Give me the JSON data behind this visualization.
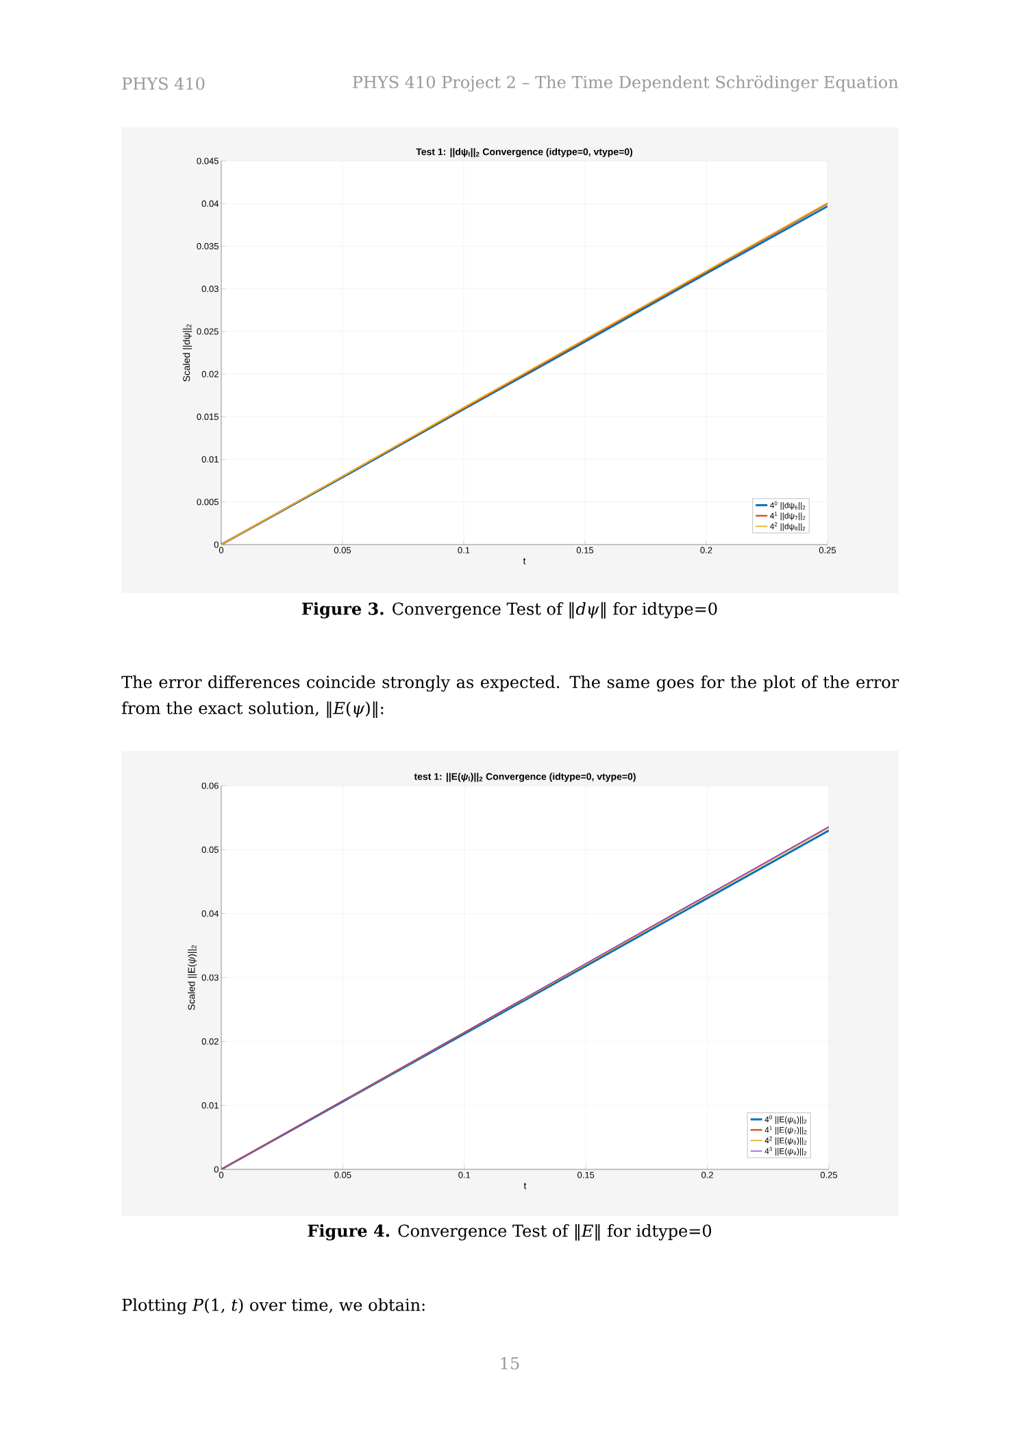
{
  "chart_data": [
    {
      "type": "line",
      "title": "Test 1: ||dψ$_{l}$||$_{2}$ Convergence (idtype=0, vtype=0)",
      "xlabel": "t",
      "ylabel": "Scaled ||dψ||$_{2}$",
      "x": [
        0,
        0.05,
        0.1,
        0.15,
        0.2,
        0.25
      ],
      "series": [
        {
          "name": "4$^{0}$ ||dψ$_{6}$||$_{2}$",
          "color": "#0072bd",
          "values": [
            0,
            0.0079,
            0.0159,
            0.0238,
            0.0318,
            0.0397
          ]
        },
        {
          "name": "4$^{1}$ ||dψ$_{7}$||$_{2}$",
          "color": "#d95319",
          "values": [
            0,
            0.008,
            0.016,
            0.024,
            0.032,
            0.04
          ]
        },
        {
          "name": "4$^{2}$ ||dψ$_{8}$||$_{2}$",
          "color": "#edb120",
          "values": [
            0,
            0.008,
            0.0161,
            0.0241,
            0.0321,
            0.0401
          ]
        }
      ],
      "xlim": [
        0,
        0.25
      ],
      "xticks": [
        0,
        0.05,
        0.1,
        0.15,
        0.2,
        0.25
      ],
      "ylim": [
        0,
        0.045
      ],
      "yticks": [
        0,
        0.005,
        0.01,
        0.015,
        0.02,
        0.025,
        0.03,
        0.035,
        0.04,
        0.045
      ],
      "grid": true,
      "legend": "bottom right",
      "annotations": [
        "PHYS 410",
        "PHYS 410 Project 2 – The Time Dependent Schrödinger Equation",
        "**Figure 3.** Convergence Test of ‖*dψ*‖ for idtype=0"
      ]
    },
    {
      "type": "line",
      "title": "test 1: ||E(*ψ*$_{l}$)||$_{2}$ Convergence (idtype=0, vtype=0)",
      "xlabel": "t",
      "ylabel": "Scaled ||E(*ψ*)||$_{2}$",
      "x": [
        0,
        0.05,
        0.1,
        0.15,
        0.2,
        0.25
      ],
      "series": [
        {
          "name": "4$^{0}$ ||E(*ψ*$_{6}$)||$_{2}$",
          "color": "#0072bd",
          "values": [
            0,
            0.0106,
            0.0212,
            0.0318,
            0.0424,
            0.053
          ]
        },
        {
          "name": "4$^{1}$ ||E(*ψ*$_{7}$)||$_{2}$",
          "color": "#d95319",
          "values": [
            0,
            0.0107,
            0.0214,
            0.0321,
            0.0428,
            0.0535
          ]
        },
        {
          "name": "4$^{2}$ ||E(*ψ*$_{8}$)||$_{2}$",
          "color": "#edb120",
          "values": [
            0,
            0.0107,
            0.0214,
            0.0321,
            0.0428,
            0.0535
          ]
        },
        {
          "name": "4$^{3}$ ||E(*ψ*$_{9}$)||$_{2}$",
          "color": "#7e1fd6",
          "values": [
            0,
            0.0107,
            0.0214,
            0.0322,
            0.0429,
            0.0536
          ]
        }
      ],
      "xlim": [
        0,
        0.25
      ],
      "xticks": [
        0,
        0.05,
        0.1,
        0.15,
        0.2,
        0.25
      ],
      "ylim": [
        0,
        0.06
      ],
      "yticks": [
        0,
        0.01,
        0.02,
        0.03,
        0.04,
        0.05,
        0.06
      ],
      "grid": true,
      "legend": "bottom right",
      "annotations": [
        "The error differences coincide strongly as expected. The same goes for the plot of the error from the exact solution, ‖*E*(*ψ*)‖:",
        "**Figure 4.** Convergence Test of ‖*E*‖ for idtype=0",
        "Plotting *P*(1, *t*) over time, we obtain:",
        "15"
      ]
    }
  ]
}
